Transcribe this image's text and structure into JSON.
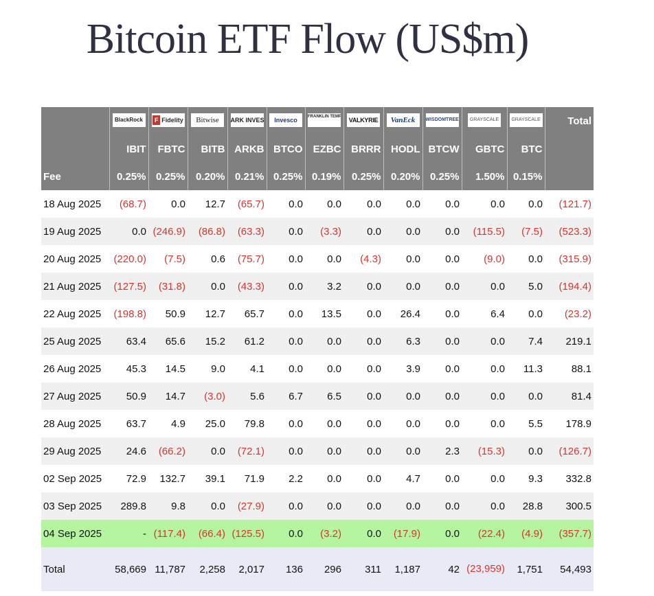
{
  "title": "Bitcoin ETF Flow (US$m)",
  "logos": [
    "BlackRock",
    "Fidelity",
    "Bitwise",
    "ARK INVEST",
    "Invesco",
    "FRANKLIN TEMPLETON",
    "VALKYRIE",
    "VanEck",
    "WISDOMTREE",
    "GRAYSCALE",
    "GRAYSCALE"
  ],
  "header_total": "Total",
  "tickers": [
    "IBIT",
    "FBTC",
    "BITB",
    "ARKB",
    "BTCO",
    "EZBC",
    "BRRR",
    "HODL",
    "BTCW",
    "GBTC",
    "BTC"
  ],
  "fee_label": "Fee",
  "fees": [
    "0.25%",
    "0.25%",
    "0.20%",
    "0.21%",
    "0.25%",
    "0.19%",
    "0.25%",
    "0.20%",
    "0.25%",
    "1.50%",
    "0.15%"
  ],
  "rows": [
    {
      "date": "18 Aug 2025",
      "vals": [
        "(68.7)",
        "0.0",
        "12.7",
        "(65.7)",
        "0.0",
        "0.0",
        "0.0",
        "0.0",
        "0.0",
        "0.0",
        "0.0",
        "(121.7)"
      ]
    },
    {
      "date": "19 Aug 2025",
      "vals": [
        "0.0",
        "(246.9)",
        "(86.8)",
        "(63.3)",
        "0.0",
        "(3.3)",
        "0.0",
        "0.0",
        "0.0",
        "(115.5)",
        "(7.5)",
        "(523.3)"
      ]
    },
    {
      "date": "20 Aug 2025",
      "vals": [
        "(220.0)",
        "(7.5)",
        "0.6",
        "(75.7)",
        "0.0",
        "0.0",
        "(4.3)",
        "0.0",
        "0.0",
        "(9.0)",
        "0.0",
        "(315.9)"
      ]
    },
    {
      "date": "21 Aug 2025",
      "vals": [
        "(127.5)",
        "(31.8)",
        "0.0",
        "(43.3)",
        "0.0",
        "3.2",
        "0.0",
        "0.0",
        "0.0",
        "0.0",
        "5.0",
        "(194.4)"
      ]
    },
    {
      "date": "22 Aug 2025",
      "vals": [
        "(198.8)",
        "50.9",
        "12.7",
        "65.7",
        "0.0",
        "13.5",
        "0.0",
        "26.4",
        "0.0",
        "6.4",
        "0.0",
        "(23.2)"
      ]
    },
    {
      "date": "25 Aug 2025",
      "vals": [
        "63.4",
        "65.6",
        "15.2",
        "61.2",
        "0.0",
        "0.0",
        "0.0",
        "6.3",
        "0.0",
        "0.0",
        "7.4",
        "219.1"
      ]
    },
    {
      "date": "26 Aug 2025",
      "vals": [
        "45.3",
        "14.5",
        "9.0",
        "4.1",
        "0.0",
        "0.0",
        "0.0",
        "3.9",
        "0.0",
        "0.0",
        "11.3",
        "88.1"
      ]
    },
    {
      "date": "27 Aug 2025",
      "vals": [
        "50.9",
        "14.7",
        "(3.0)",
        "5.6",
        "6.7",
        "6.5",
        "0.0",
        "0.0",
        "0.0",
        "0.0",
        "0.0",
        "81.4"
      ]
    },
    {
      "date": "28 Aug 2025",
      "vals": [
        "63.7",
        "4.9",
        "25.0",
        "79.8",
        "0.0",
        "0.0",
        "0.0",
        "0.0",
        "0.0",
        "0.0",
        "5.5",
        "178.9"
      ]
    },
    {
      "date": "29 Aug 2025",
      "vals": [
        "24.6",
        "(66.2)",
        "0.0",
        "(72.1)",
        "0.0",
        "0.0",
        "0.0",
        "0.0",
        "2.3",
        "(15.3)",
        "0.0",
        "(126.7)"
      ]
    },
    {
      "date": "02 Sep 2025",
      "vals": [
        "72.9",
        "132.7",
        "39.1",
        "71.9",
        "2.2",
        "0.0",
        "0.0",
        "4.7",
        "0.0",
        "0.0",
        "9.3",
        "332.8"
      ]
    },
    {
      "date": "03 Sep 2025",
      "vals": [
        "289.8",
        "9.8",
        "0.0",
        "(27.9)",
        "0.0",
        "0.0",
        "0.0",
        "0.0",
        "0.0",
        "0.0",
        "28.8",
        "300.5"
      ]
    },
    {
      "date": "04 Sep 2025",
      "vals": [
        "-",
        "(117.4)",
        "(66.4)",
        "(125.5)",
        "0.0",
        "(3.2)",
        "0.0",
        "(17.9)",
        "0.0",
        "(22.4)",
        "(4.9)",
        "(357.7)"
      ]
    }
  ],
  "total_row": {
    "label": "Total",
    "vals": [
      "58,669",
      "11,787",
      "2,258",
      "2,017",
      "136",
      "296",
      "311",
      "1,187",
      "42",
      "(23,959)",
      "1,751",
      "54,493"
    ]
  },
  "colors": {
    "header_bg": "#808080",
    "negative": "#d9342b",
    "highlight_row": "#b6f5a0",
    "total_row": "#e8ebf6",
    "stripe": "#f0f0f0"
  }
}
